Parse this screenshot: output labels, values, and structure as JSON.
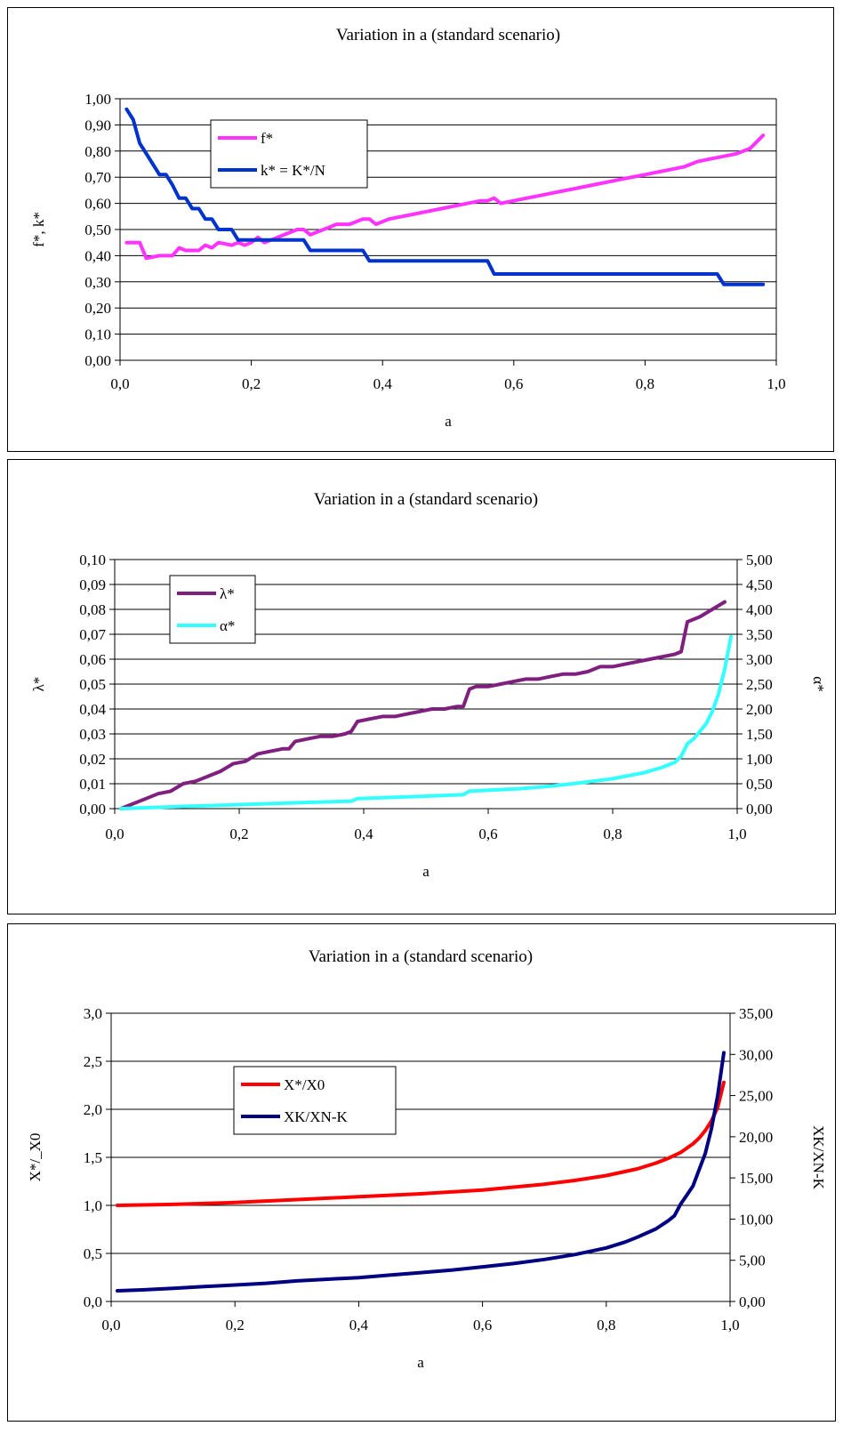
{
  "charts": [
    {
      "title": "Variation in a (standard scenario)",
      "xlabel": "a",
      "ylabel": "f*, k*",
      "y2label": "",
      "x_ticks": [
        "0,0",
        "0,2",
        "0,4",
        "0,6",
        "0,8",
        "1,0"
      ],
      "y_ticks": [
        "0,00",
        "0,10",
        "0,20",
        "0,30",
        "0,40",
        "0,50",
        "0,60",
        "0,70",
        "0,80",
        "0,90",
        "1,00"
      ],
      "y2_ticks": [],
      "legend": [
        "f*",
        "k* = K*/N"
      ]
    },
    {
      "title": "Variation in a (standard scenario)",
      "xlabel": "a",
      "ylabel": "λ*",
      "y2label": "α*",
      "x_ticks": [
        "0,0",
        "0,2",
        "0,4",
        "0,6",
        "0,8",
        "1,0"
      ],
      "y_ticks": [
        "0,00",
        "0,01",
        "0,02",
        "0,03",
        "0,04",
        "0,05",
        "0,06",
        "0,07",
        "0,08",
        "0,09",
        "0,10"
      ],
      "y2_ticks": [
        "0,00",
        "0,50",
        "1,00",
        "1,50",
        "2,00",
        "2,50",
        "3,00",
        "3,50",
        "4,00",
        "4,50",
        "5,00"
      ],
      "legend": [
        "λ*",
        "α*"
      ]
    },
    {
      "title": "Variation in a (standard scenario)",
      "xlabel": "a",
      "ylabel": "X*/_X0",
      "y2label": "XK/XN-K",
      "x_ticks": [
        "0,0",
        "0,2",
        "0,4",
        "0,6",
        "0,8",
        "1,0"
      ],
      "y_ticks": [
        "0,0",
        "0,5",
        "1,0",
        "1,5",
        "2,0",
        "2,5",
        "3,0"
      ],
      "y2_ticks": [
        "0,00",
        "5,00",
        "10,00",
        "15,00",
        "20,00",
        "25,00",
        "30,00",
        "35,00"
      ],
      "legend": [
        "X*/X0",
        "XK/XN-K"
      ]
    }
  ],
  "chart_data": [
    {
      "type": "line",
      "title": "Variation in a (standard scenario)",
      "xlabel": "a",
      "ylabel": "f*, k*",
      "xlim": [
        0,
        1
      ],
      "ylim": [
        0,
        1
      ],
      "grid": true,
      "legend_position": "top-left",
      "series": [
        {
          "name": "f*",
          "color": "#ff33ff",
          "axis": "left",
          "x": [
            0.01,
            0.03,
            0.04,
            0.06,
            0.08,
            0.09,
            0.1,
            0.12,
            0.13,
            0.14,
            0.15,
            0.17,
            0.18,
            0.19,
            0.2,
            0.21,
            0.22,
            0.23,
            0.25,
            0.27,
            0.28,
            0.29,
            0.3,
            0.32,
            0.33,
            0.35,
            0.37,
            0.38,
            0.39,
            0.41,
            0.43,
            0.45,
            0.47,
            0.49,
            0.51,
            0.53,
            0.55,
            0.56,
            0.57,
            0.58,
            0.6,
            0.62,
            0.64,
            0.66,
            0.68,
            0.7,
            0.72,
            0.74,
            0.76,
            0.78,
            0.8,
            0.82,
            0.84,
            0.86,
            0.88,
            0.9,
            0.92,
            0.94,
            0.96,
            0.98
          ],
          "values": [
            0.45,
            0.45,
            0.39,
            0.4,
            0.4,
            0.43,
            0.42,
            0.42,
            0.44,
            0.43,
            0.45,
            0.44,
            0.45,
            0.44,
            0.45,
            0.47,
            0.45,
            0.46,
            0.48,
            0.5,
            0.5,
            0.48,
            0.49,
            0.51,
            0.52,
            0.52,
            0.54,
            0.54,
            0.52,
            0.54,
            0.55,
            0.56,
            0.57,
            0.58,
            0.59,
            0.6,
            0.61,
            0.61,
            0.62,
            0.6,
            0.61,
            0.62,
            0.63,
            0.64,
            0.65,
            0.66,
            0.67,
            0.68,
            0.69,
            0.7,
            0.71,
            0.72,
            0.73,
            0.74,
            0.76,
            0.77,
            0.78,
            0.79,
            0.81,
            0.86
          ]
        },
        {
          "name": "k* = K*/N",
          "color": "#0033cc",
          "axis": "left",
          "x": [
            0.01,
            0.02,
            0.03,
            0.04,
            0.05,
            0.06,
            0.07,
            0.08,
            0.09,
            0.1,
            0.11,
            0.12,
            0.13,
            0.14,
            0.15,
            0.16,
            0.17,
            0.18,
            0.19,
            0.2,
            0.21,
            0.22,
            0.23,
            0.24,
            0.25,
            0.26,
            0.27,
            0.28,
            0.29,
            0.37,
            0.38,
            0.56,
            0.57,
            0.91,
            0.92,
            0.98
          ],
          "values": [
            0.96,
            0.92,
            0.83,
            0.79,
            0.75,
            0.71,
            0.71,
            0.67,
            0.62,
            0.62,
            0.58,
            0.58,
            0.54,
            0.54,
            0.5,
            0.5,
            0.5,
            0.46,
            0.46,
            0.46,
            0.46,
            0.46,
            0.46,
            0.46,
            0.46,
            0.46,
            0.46,
            0.46,
            0.42,
            0.42,
            0.38,
            0.38,
            0.33,
            0.33,
            0.29,
            0.29
          ]
        }
      ]
    },
    {
      "type": "line",
      "title": "Variation in a (standard scenario)",
      "xlabel": "a",
      "ylabel": "λ*",
      "y2label": "α*",
      "xlim": [
        0,
        1
      ],
      "ylim": [
        0,
        0.1
      ],
      "y2lim": [
        0,
        5
      ],
      "grid": true,
      "legend_position": "top-left",
      "series": [
        {
          "name": "λ*",
          "color": "#7f1f7f",
          "axis": "left",
          "x": [
            0.01,
            0.03,
            0.05,
            0.07,
            0.09,
            0.11,
            0.13,
            0.15,
            0.17,
            0.19,
            0.21,
            0.23,
            0.25,
            0.27,
            0.28,
            0.29,
            0.31,
            0.33,
            0.35,
            0.37,
            0.38,
            0.39,
            0.41,
            0.43,
            0.45,
            0.47,
            0.49,
            0.51,
            0.53,
            0.55,
            0.56,
            0.57,
            0.58,
            0.6,
            0.62,
            0.64,
            0.66,
            0.68,
            0.7,
            0.72,
            0.74,
            0.76,
            0.78,
            0.8,
            0.82,
            0.84,
            0.86,
            0.88,
            0.9,
            0.91,
            0.92,
            0.94,
            0.96,
            0.98
          ],
          "values": [
            0.0,
            0.002,
            0.004,
            0.006,
            0.007,
            0.01,
            0.011,
            0.013,
            0.015,
            0.018,
            0.019,
            0.022,
            0.023,
            0.024,
            0.024,
            0.027,
            0.028,
            0.029,
            0.029,
            0.03,
            0.031,
            0.035,
            0.036,
            0.037,
            0.037,
            0.038,
            0.039,
            0.04,
            0.04,
            0.041,
            0.041,
            0.048,
            0.049,
            0.049,
            0.05,
            0.051,
            0.052,
            0.052,
            0.053,
            0.054,
            0.054,
            0.055,
            0.057,
            0.057,
            0.058,
            0.059,
            0.06,
            0.061,
            0.062,
            0.063,
            0.075,
            0.077,
            0.08,
            0.083
          ]
        },
        {
          "name": "α*",
          "color": "#33ffff",
          "axis": "right",
          "x": [
            0.01,
            0.1,
            0.2,
            0.3,
            0.38,
            0.39,
            0.5,
            0.56,
            0.57,
            0.65,
            0.7,
            0.75,
            0.8,
            0.85,
            0.88,
            0.9,
            0.91,
            0.92,
            0.93,
            0.95,
            0.96,
            0.97,
            0.98,
            0.99
          ],
          "values": [
            0.0,
            0.04,
            0.08,
            0.12,
            0.15,
            0.2,
            0.25,
            0.28,
            0.35,
            0.4,
            0.45,
            0.52,
            0.6,
            0.72,
            0.83,
            0.93,
            1.05,
            1.3,
            1.4,
            1.7,
            1.95,
            2.3,
            2.8,
            3.45
          ]
        }
      ]
    },
    {
      "type": "line",
      "title": "Variation in a (standard scenario)",
      "xlabel": "a",
      "ylabel": "X*/_X0",
      "y2label": "XK/XN-K",
      "xlim": [
        0,
        1
      ],
      "ylim": [
        0,
        3
      ],
      "y2lim": [
        0,
        35
      ],
      "grid": true,
      "legend_position": "top-left",
      "series": [
        {
          "name": "X*/X0",
          "color": "#ff0000",
          "axis": "left",
          "x": [
            0.01,
            0.1,
            0.2,
            0.3,
            0.4,
            0.5,
            0.6,
            0.7,
            0.75,
            0.8,
            0.85,
            0.88,
            0.9,
            0.92,
            0.94,
            0.95,
            0.96,
            0.97,
            0.98,
            0.99
          ],
          "values": [
            1.0,
            1.01,
            1.03,
            1.06,
            1.09,
            1.12,
            1.16,
            1.22,
            1.26,
            1.31,
            1.38,
            1.44,
            1.49,
            1.55,
            1.64,
            1.7,
            1.78,
            1.88,
            2.02,
            2.28
          ]
        },
        {
          "name": "XK/XN-K",
          "color": "#000080",
          "axis": "right",
          "x": [
            0.01,
            0.05,
            0.1,
            0.15,
            0.2,
            0.25,
            0.3,
            0.35,
            0.4,
            0.45,
            0.5,
            0.55,
            0.6,
            0.65,
            0.7,
            0.75,
            0.8,
            0.83,
            0.85,
            0.88,
            0.9,
            0.91,
            0.92,
            0.93,
            0.94,
            0.95,
            0.96,
            0.97,
            0.98,
            0.99
          ],
          "values": [
            1.3,
            1.4,
            1.6,
            1.8,
            2.0,
            2.2,
            2.5,
            2.7,
            2.9,
            3.2,
            3.5,
            3.8,
            4.2,
            4.6,
            5.1,
            5.7,
            6.5,
            7.2,
            7.8,
            8.8,
            9.8,
            10.4,
            11.8,
            12.9,
            14.0,
            16.0,
            18.0,
            21.0,
            25.0,
            30.2
          ]
        }
      ]
    }
  ]
}
